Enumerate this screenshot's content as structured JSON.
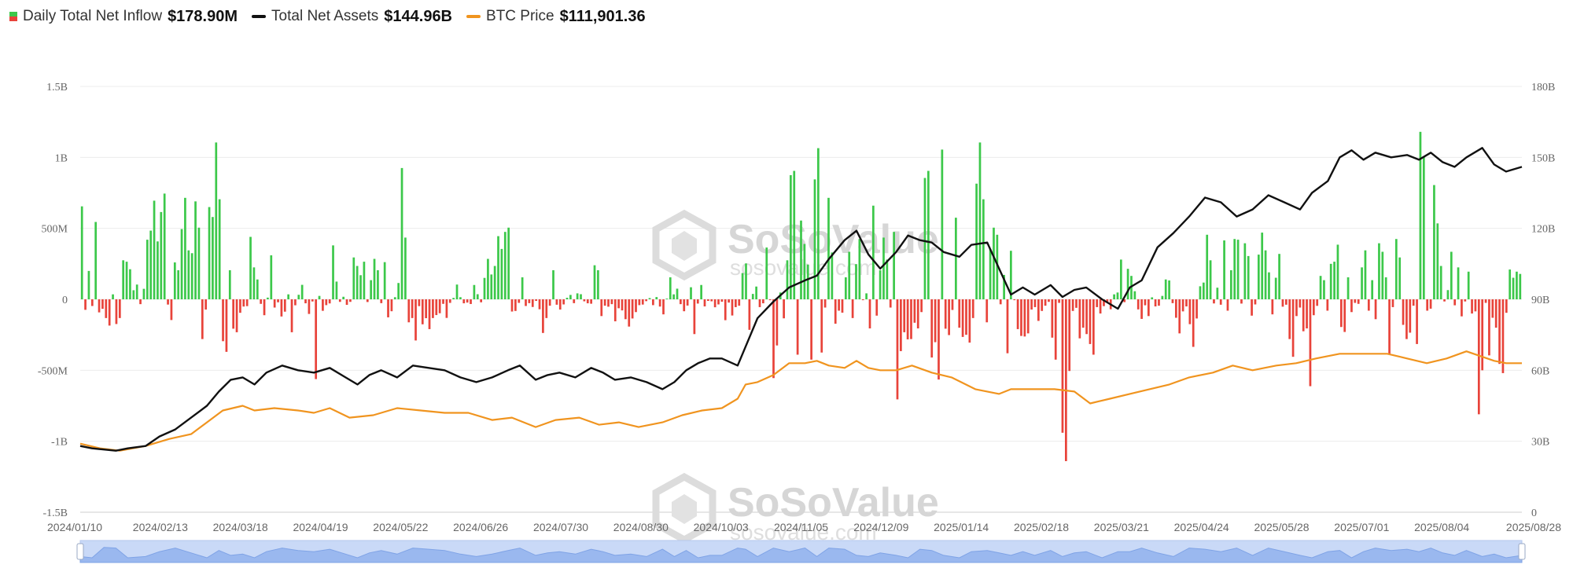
{
  "legend": {
    "inflow": {
      "name": "Daily Total Net Inflow",
      "value": "$178.90M",
      "color_pos": "#3cc84a",
      "color_neg": "#e8433a"
    },
    "assets": {
      "name": "Total Net Assets",
      "value": "$144.96B",
      "color": "#111111"
    },
    "btc": {
      "name": "BTC Price",
      "value": "$111,901.36",
      "color": "#f0941f"
    }
  },
  "watermark": {
    "brand": "SoSoValue",
    "site": "sosovalue.com"
  },
  "chart_data": {
    "type": "bar+line",
    "x_ticks": [
      "2024/01/10",
      "2024/02/13",
      "2024/03/18",
      "2024/04/19",
      "2024/05/22",
      "2024/06/26",
      "2024/07/30",
      "2024/08/30",
      "2024/10/03",
      "2024/11/05",
      "2024/12/09",
      "2025/01/14",
      "2025/02/18",
      "2025/03/21",
      "2025/04/24",
      "2025/05/28",
      "2025/07/01",
      "2025/08/04",
      "2025/08/28"
    ],
    "y_left": {
      "ticks": [
        "1.5B",
        "1B",
        "500M",
        "0",
        "-500M",
        "-1B",
        "-1.5B"
      ],
      "range": [
        -1500,
        1500
      ],
      "unit": "M USD"
    },
    "y_right": {
      "ticks": [
        "180B",
        "150B",
        "120B",
        "90B",
        "60B",
        "30B",
        "0"
      ],
      "range": [
        0,
        180
      ],
      "unit": "B USD"
    },
    "series": [
      {
        "name": "Daily Total Net Inflow",
        "kind": "bar",
        "unit": "M USD",
        "values": [
          655,
          -74,
          200,
          -47,
          545,
          -92,
          -67,
          -132,
          -185,
          35,
          -174,
          -132,
          275,
          265,
          212,
          64,
          104,
          -34,
          74,
          420,
          484,
          695,
          408,
          615,
          745,
          -37,
          -146,
          260,
          205,
          495,
          715,
          345,
          325,
          690,
          505,
          -280,
          -72,
          650,
          580,
          1105,
          705,
          -295,
          -370,
          205,
          -207,
          -232,
          -95,
          -51,
          -48,
          440,
          225,
          140,
          -32,
          -112,
          12,
          310,
          -58,
          -21,
          -121,
          -87,
          35,
          -232,
          -42,
          32,
          102,
          -28,
          -103,
          -15,
          -562,
          24,
          -81,
          -41,
          -29,
          380,
          125,
          -18,
          18,
          -39,
          -18,
          295,
          235,
          170,
          265,
          -19,
          135,
          285,
          205,
          -27,
          262,
          -127,
          -84,
          15,
          115,
          925,
          435,
          -162,
          -132,
          -290,
          -48,
          -176,
          -133,
          -210,
          -132,
          -111,
          -98,
          -32,
          -131,
          -25,
          10,
          104,
          15,
          -28,
          -23,
          -33,
          101,
          36,
          -21,
          151,
          285,
          175,
          235,
          445,
          355,
          475,
          505,
          -86,
          -82,
          -25,
          155,
          -47,
          -27,
          -54,
          -11,
          -70,
          -237,
          -132,
          -45,
          205,
          -38,
          -72,
          -36,
          11,
          31,
          -27,
          42,
          36,
          -14,
          -28,
          -31,
          240,
          205,
          -118,
          -45,
          -52,
          -34,
          -155,
          -63,
          -78,
          -140,
          -192,
          -135,
          -90,
          -41,
          -37,
          -13,
          9,
          -41,
          16,
          -51,
          -106,
          5,
          155,
          35,
          75,
          -34,
          -84,
          -44,
          85,
          -245,
          -30,
          101,
          -50,
          -11,
          -14,
          -56,
          -36,
          -17,
          -147,
          -23,
          -114,
          -55,
          -45,
          185,
          253,
          -215,
          38,
          90,
          -55,
          -28,
          365,
          -6,
          -555,
          -325,
          48,
          -134,
          275,
          875,
          905,
          -390,
          555,
          390,
          245,
          -425,
          845,
          1065,
          -375,
          -58,
          715,
          330,
          -172,
          -80,
          -94,
          155,
          335,
          -132,
          248,
          425,
          -6,
          42,
          -205,
          660,
          -115,
          205,
          435,
          280,
          -58,
          475,
          -705,
          -365,
          -232,
          -282,
          -280,
          -165,
          -205,
          -90,
          855,
          905,
          -410,
          -302,
          -565,
          1055,
          -207,
          -252,
          -75,
          575,
          -200,
          -265,
          -250,
          -305,
          -132,
          815,
          1105,
          705,
          -162,
          355,
          505,
          455,
          -35,
          172,
          -380,
          342,
          -6,
          -210,
          -258,
          -262,
          -240,
          -72,
          -55,
          -152,
          -82,
          -45,
          -18,
          -270,
          -425,
          -25,
          -940,
          -1140,
          -505,
          -82,
          -60,
          -275,
          -200,
          -245,
          -315,
          -390,
          -55,
          -100,
          -48,
          -23,
          -70,
          35,
          48,
          280,
          -20,
          215,
          165,
          57,
          -71,
          -138,
          -42,
          -118,
          14,
          -50,
          -45,
          24,
          140,
          133,
          -27,
          -130,
          -240,
          -85,
          -50,
          -175,
          -335,
          -135,
          92,
          118,
          455,
          275,
          -29,
          82,
          -38,
          415,
          -80,
          205,
          425,
          420,
          -30,
          395,
          305,
          -115,
          -36,
          315,
          470,
          345,
          190,
          -106,
          152,
          320,
          -52,
          -38,
          -280,
          -405,
          -118,
          -58,
          -225,
          -205,
          -612,
          -112,
          -46,
          165,
          135,
          -80,
          250,
          265,
          385,
          -195,
          -230,
          155,
          -90,
          -25,
          -32,
          225,
          345,
          -80,
          135,
          -140,
          395,
          335,
          155,
          -385,
          -55,
          425,
          295,
          -180,
          -280,
          -235,
          -45,
          -315,
          1180,
          1005,
          -80,
          -66,
          805,
          535,
          235,
          -15,
          65,
          335,
          -42,
          225,
          -120,
          -15,
          195,
          -100,
          -85,
          -810,
          -500,
          -25,
          -395,
          -130,
          -200,
          -455,
          -520,
          -95,
          210,
          152,
          195,
          178.9
        ]
      },
      {
        "name": "Total Net Assets",
        "kind": "line",
        "unit": "B USD",
        "axis": "right",
        "points": [
          [
            0,
            28
          ],
          [
            6,
            27
          ],
          [
            12,
            26.5
          ],
          [
            18,
            26
          ],
          [
            24,
            27
          ],
          [
            33,
            28
          ],
          [
            40,
            32
          ],
          [
            48,
            35
          ],
          [
            56,
            40
          ],
          [
            64,
            45
          ],
          [
            70,
            51
          ],
          [
            76,
            56
          ],
          [
            82,
            57
          ],
          [
            88,
            54
          ],
          [
            94,
            59
          ],
          [
            102,
            62
          ],
          [
            110,
            60
          ],
          [
            118,
            59
          ],
          [
            126,
            61
          ],
          [
            134,
            57
          ],
          [
            140,
            54
          ],
          [
            146,
            58
          ],
          [
            152,
            60
          ],
          [
            160,
            57
          ],
          [
            168,
            62
          ],
          [
            176,
            61
          ],
          [
            184,
            60
          ],
          [
            192,
            57
          ],
          [
            200,
            55
          ],
          [
            208,
            57
          ],
          [
            216,
            60
          ],
          [
            222,
            62
          ],
          [
            230,
            56
          ],
          [
            236,
            58
          ],
          [
            242,
            59
          ],
          [
            250,
            57
          ],
          [
            258,
            61
          ],
          [
            264,
            59
          ],
          [
            270,
            56
          ],
          [
            278,
            57
          ],
          [
            286,
            55
          ],
          [
            294,
            52
          ],
          [
            300,
            55
          ],
          [
            306,
            60
          ],
          [
            312,
            63
          ],
          [
            318,
            65
          ],
          [
            324,
            65
          ],
          [
            332,
            62
          ],
          [
            336,
            70
          ],
          [
            342,
            82
          ],
          [
            350,
            89
          ],
          [
            358,
            95
          ],
          [
            366,
            98
          ],
          [
            372,
            100
          ],
          [
            378,
            107
          ],
          [
            386,
            115
          ],
          [
            392,
            119
          ],
          [
            398,
            109
          ],
          [
            404,
            103
          ],
          [
            412,
            110
          ],
          [
            418,
            117
          ],
          [
            424,
            115
          ],
          [
            430,
            114
          ],
          [
            436,
            110
          ],
          [
            444,
            108
          ],
          [
            450,
            113
          ],
          [
            458,
            114
          ],
          [
            464,
            103
          ],
          [
            470,
            92
          ],
          [
            476,
            95
          ],
          [
            482,
            92
          ],
          [
            490,
            96
          ],
          [
            496,
            91
          ],
          [
            502,
            94
          ],
          [
            508,
            95
          ],
          [
            516,
            90
          ],
          [
            524,
            86
          ],
          [
            530,
            95
          ],
          [
            536,
            98
          ],
          [
            544,
            112
          ],
          [
            552,
            118
          ],
          [
            560,
            125
          ],
          [
            568,
            133
          ],
          [
            576,
            131
          ],
          [
            584,
            125
          ],
          [
            592,
            128
          ],
          [
            600,
            134
          ],
          [
            608,
            131
          ],
          [
            616,
            128
          ],
          [
            622,
            135
          ],
          [
            630,
            140
          ],
          [
            636,
            150
          ],
          [
            642,
            153
          ],
          [
            648,
            149
          ],
          [
            654,
            152
          ],
          [
            662,
            150
          ],
          [
            670,
            151
          ],
          [
            676,
            149
          ],
          [
            682,
            152
          ],
          [
            688,
            148
          ],
          [
            694,
            146
          ],
          [
            700,
            150
          ],
          [
            708,
            154
          ],
          [
            714,
            147
          ],
          [
            720,
            144
          ],
          [
            728,
            146
          ]
        ],
        "anchors": {
          "start": "2024/01/10",
          "end": "2025/08/28",
          "last": 144.96
        }
      },
      {
        "name": "BTC Price",
        "kind": "line",
        "unit": "B USD scale",
        "axis": "right",
        "points": [
          [
            0,
            29
          ],
          [
            10,
            27
          ],
          [
            20,
            26
          ],
          [
            33,
            28
          ],
          [
            45,
            31
          ],
          [
            56,
            33
          ],
          [
            64,
            38
          ],
          [
            72,
            43
          ],
          [
            82,
            45
          ],
          [
            88,
            43
          ],
          [
            98,
            44
          ],
          [
            110,
            43
          ],
          [
            118,
            42
          ],
          [
            126,
            44
          ],
          [
            136,
            40
          ],
          [
            148,
            41
          ],
          [
            160,
            44
          ],
          [
            172,
            43
          ],
          [
            184,
            42
          ],
          [
            196,
            42
          ],
          [
            208,
            39
          ],
          [
            218,
            40
          ],
          [
            230,
            36
          ],
          [
            240,
            39
          ],
          [
            252,
            40
          ],
          [
            262,
            37
          ],
          [
            272,
            38
          ],
          [
            282,
            36
          ],
          [
            294,
            38
          ],
          [
            304,
            41
          ],
          [
            314,
            43
          ],
          [
            324,
            44
          ],
          [
            332,
            48
          ],
          [
            336,
            54
          ],
          [
            342,
            55
          ],
          [
            350,
            58
          ],
          [
            358,
            63
          ],
          [
            366,
            63
          ],
          [
            372,
            64
          ],
          [
            378,
            62
          ],
          [
            386,
            61
          ],
          [
            392,
            64
          ],
          [
            398,
            61
          ],
          [
            404,
            60
          ],
          [
            412,
            60
          ],
          [
            420,
            62
          ],
          [
            430,
            59
          ],
          [
            440,
            57
          ],
          [
            452,
            52
          ],
          [
            464,
            50
          ],
          [
            470,
            52
          ],
          [
            480,
            52
          ],
          [
            492,
            52
          ],
          [
            502,
            51
          ],
          [
            510,
            46
          ],
          [
            520,
            48
          ],
          [
            530,
            50
          ],
          [
            540,
            52
          ],
          [
            550,
            54
          ],
          [
            560,
            57
          ],
          [
            572,
            59
          ],
          [
            582,
            62
          ],
          [
            592,
            60
          ],
          [
            604,
            62
          ],
          [
            614,
            63
          ],
          [
            624,
            65
          ],
          [
            636,
            67
          ],
          [
            648,
            67
          ],
          [
            660,
            67
          ],
          [
            670,
            65
          ],
          [
            680,
            63
          ],
          [
            690,
            65
          ],
          [
            700,
            68
          ],
          [
            714,
            64
          ],
          [
            720,
            63
          ],
          [
            728,
            63
          ]
        ]
      }
    ]
  },
  "navigator": {
    "label": "range-selector"
  }
}
